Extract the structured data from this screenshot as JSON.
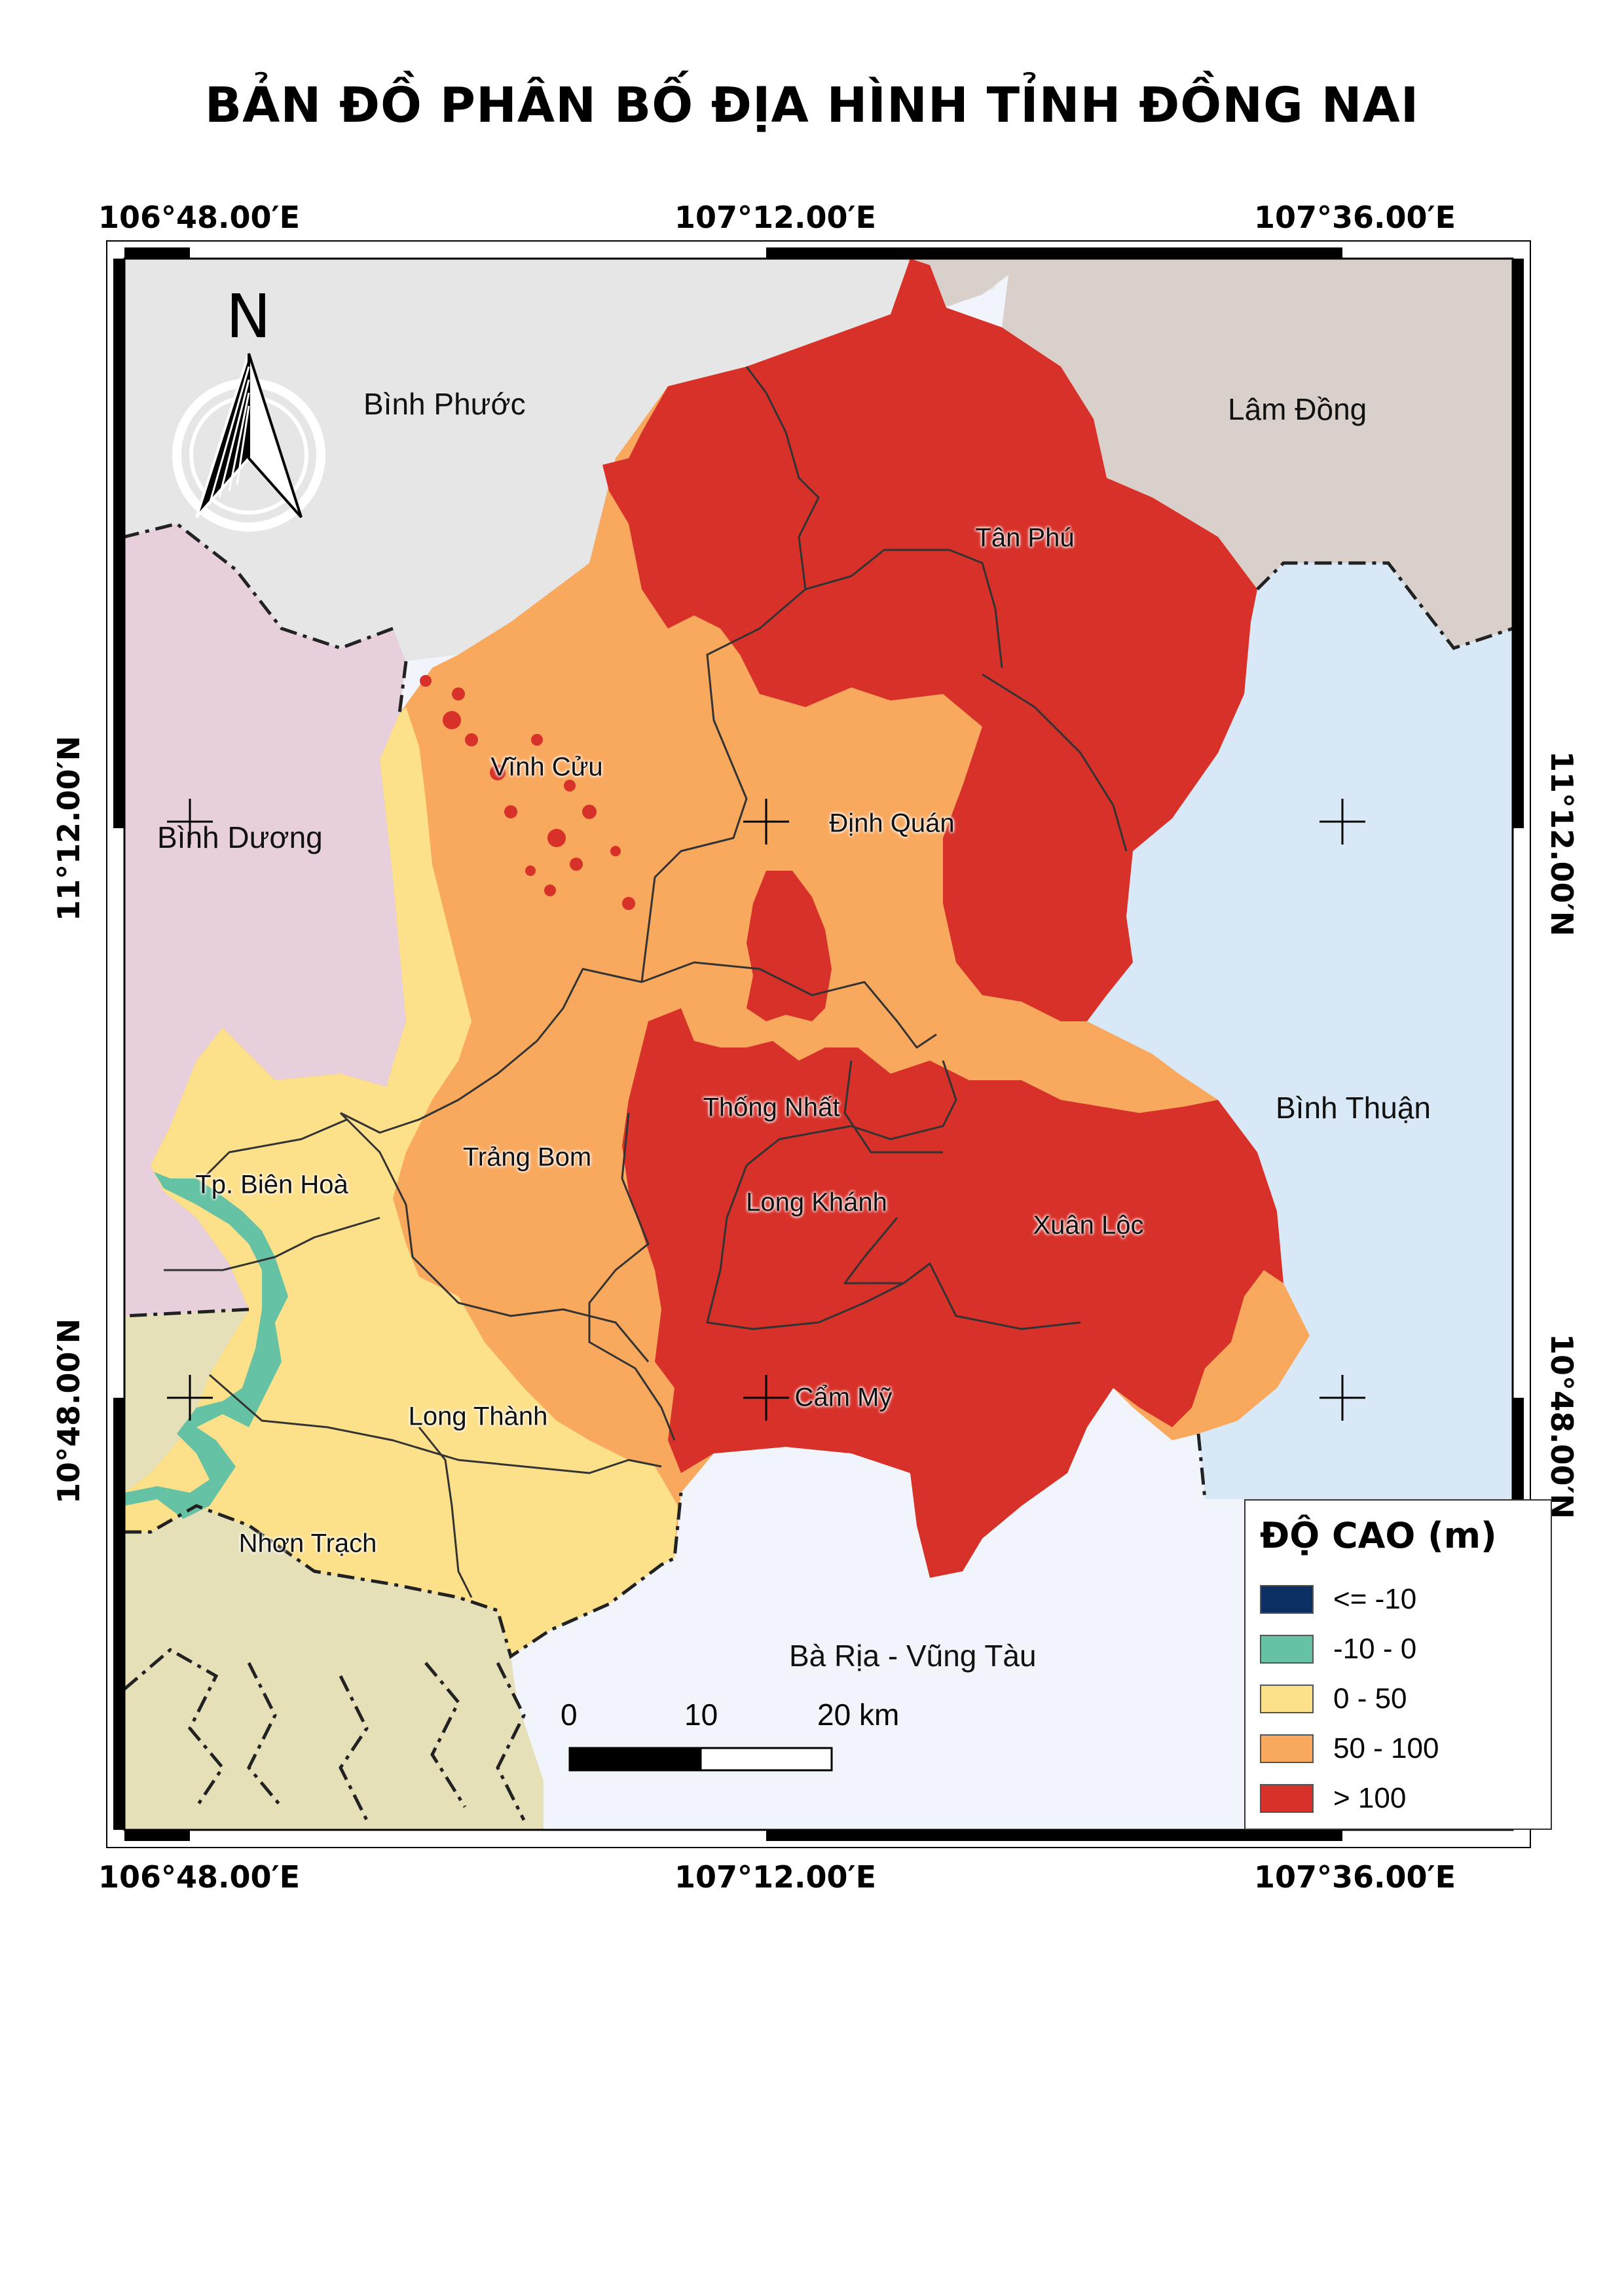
{
  "title": "BẢN ĐỒ PHÂN BỐ ĐỊA HÌNH TỈNH ĐỒNG NAI",
  "coords": {
    "lon": [
      "106°48.00′E",
      "107°12.00′E",
      "107°36.00′E"
    ],
    "lat": [
      "11°12.00′N",
      "10°48.00′N"
    ]
  },
  "north_label": "N",
  "neighbors": {
    "binh_phuoc": "Bình Phước",
    "lam_dong": "Lâm Đồng",
    "binh_duong": "Bình Dương",
    "binh_thuan": "Bình Thuận",
    "ba_ria": "Bà Rịa - Vũng Tàu"
  },
  "districts": {
    "tan_phu": "Tân Phú",
    "vinh_cuu": "Vĩnh Cửu",
    "dinh_quan": "Định Quán",
    "thong_nhat": "Thống Nhất",
    "trang_bom": "Trảng Bom",
    "bien_hoa": "Tp. Biên Hoà",
    "long_khanh": "Long Khánh",
    "xuan_loc": "Xuân Lộc",
    "cam_my": "Cẩm Mỹ",
    "long_thanh": "Long Thành",
    "nhon_trach": "Nhơn Trạch"
  },
  "legend": {
    "title": "ĐỘ CAO (m)",
    "items": [
      {
        "label": "<= -10",
        "color": "#0b2f63"
      },
      {
        "label": "-10 - 0",
        "color": "#66c2a4"
      },
      {
        "label": "0 - 50",
        "color": "#fde08a"
      },
      {
        "label": "50 - 100",
        "color": "#f9a95e"
      },
      {
        "label": "> 100",
        "color": "#d7312a"
      }
    ]
  },
  "scale_bar": {
    "labels": [
      "0",
      "10",
      "20 km"
    ]
  },
  "colors": {
    "binh_phuoc": "#e6e6e6",
    "lam_dong": "#d9d0cc",
    "binh_duong": "#e8cfdc",
    "binh_thuan": "#d9e8f6",
    "ba_ria": "#f1f5fb",
    "dong_nai_south": "#e6e0b8",
    "water": "#66c2a4"
  }
}
